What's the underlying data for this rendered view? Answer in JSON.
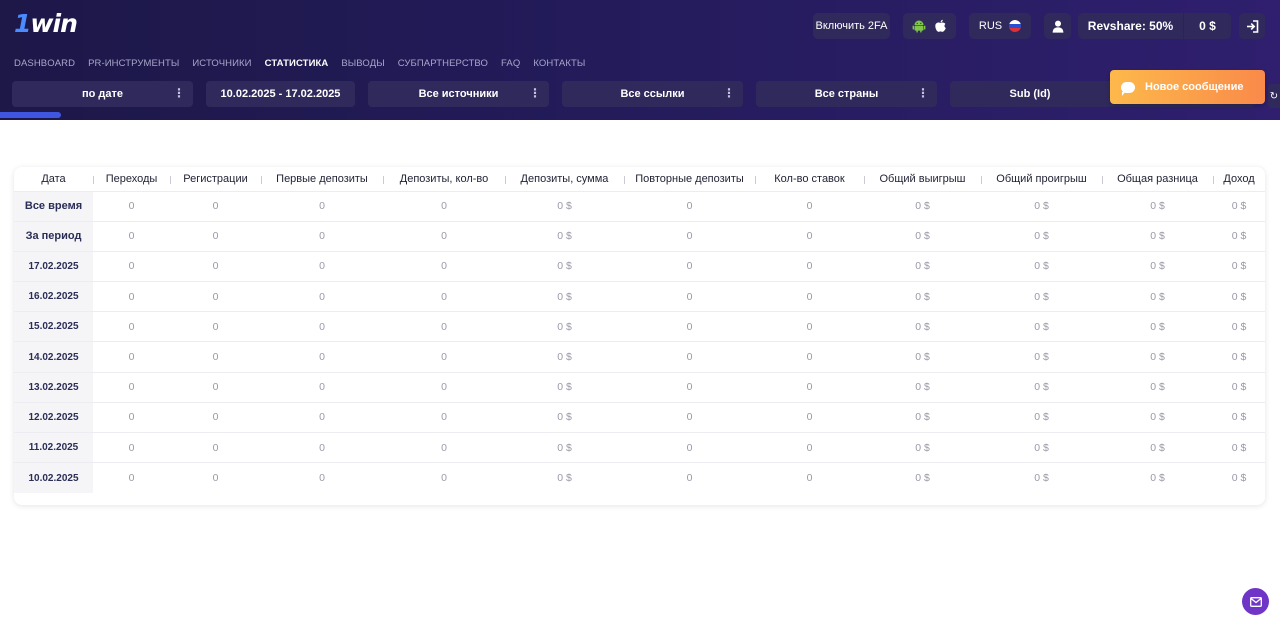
{
  "header": {
    "logo": {
      "one": "1",
      "win": "win"
    },
    "enable_2fa": "Включить 2FA",
    "app_icons": {
      "android": "android-icon",
      "apple": "apple-icon"
    },
    "language": {
      "code": "RUS",
      "flag": "russia-flag-icon"
    },
    "profile_icon": "user-icon",
    "revshare": "Revshare: 50%",
    "balance": "0 $",
    "logout_icon": "logout-icon"
  },
  "nav": {
    "items": [
      {
        "label": "DASHBOARD",
        "active": false
      },
      {
        "label": "PR-ИНСТРУМЕНТЫ",
        "active": false
      },
      {
        "label": "ИСТОЧНИКИ",
        "active": false
      },
      {
        "label": "СТАТИСТИКА",
        "active": true
      },
      {
        "label": "ВЫВОДЫ",
        "active": false
      },
      {
        "label": "СУБПАРТНЕРСТВО",
        "active": false
      },
      {
        "label": "FAQ",
        "active": false
      },
      {
        "label": "КОНТАКТЫ",
        "active": false
      }
    ]
  },
  "filters": {
    "group_by": "по дате",
    "date_range": "10.02.2025 - 17.02.2025",
    "sources": "Все источники",
    "links": "Все ссылки",
    "countries": "Все страны",
    "sub": "Sub (Id)"
  },
  "toast": {
    "text": "Новое сообщение",
    "icon": "chat-bubble-icon"
  },
  "table": {
    "columns": [
      "Дата",
      "Переходы",
      "Регистрации",
      "Первые депозиты",
      "Депозиты, кол-во",
      "Депозиты, сумма",
      "Повторные депозиты",
      "Кол-во ставок",
      "Общий выигрыш",
      "Общий проигрыш",
      "Общая разница",
      "Доход"
    ],
    "rows": [
      [
        "Все время",
        "0",
        "0",
        "0",
        "0",
        "0 $",
        "0",
        "0",
        "0 $",
        "0 $",
        "0 $",
        "0 $"
      ],
      [
        "За период",
        "0",
        "0",
        "0",
        "0",
        "0 $",
        "0",
        "0",
        "0 $",
        "0 $",
        "0 $",
        "0 $"
      ],
      [
        "17.02.2025",
        "0",
        "0",
        "0",
        "0",
        "0 $",
        "0",
        "0",
        "0 $",
        "0 $",
        "0 $",
        "0 $"
      ],
      [
        "16.02.2025",
        "0",
        "0",
        "0",
        "0",
        "0 $",
        "0",
        "0",
        "0 $",
        "0 $",
        "0 $",
        "0 $"
      ],
      [
        "15.02.2025",
        "0",
        "0",
        "0",
        "0",
        "0 $",
        "0",
        "0",
        "0 $",
        "0 $",
        "0 $",
        "0 $"
      ],
      [
        "14.02.2025",
        "0",
        "0",
        "0",
        "0",
        "0 $",
        "0",
        "0",
        "0 $",
        "0 $",
        "0 $",
        "0 $"
      ],
      [
        "13.02.2025",
        "0",
        "0",
        "0",
        "0",
        "0 $",
        "0",
        "0",
        "0 $",
        "0 $",
        "0 $",
        "0 $"
      ],
      [
        "12.02.2025",
        "0",
        "0",
        "0",
        "0",
        "0 $",
        "0",
        "0",
        "0 $",
        "0 $",
        "0 $",
        "0 $"
      ],
      [
        "11.02.2025",
        "0",
        "0",
        "0",
        "0",
        "0 $",
        "0",
        "0",
        "0 $",
        "0 $",
        "0 $",
        "0 $"
      ],
      [
        "10.02.2025",
        "0",
        "0",
        "0",
        "0",
        "0 $",
        "0",
        "0",
        "0 $",
        "0 $",
        "0 $",
        "0 $"
      ]
    ]
  },
  "mail_icon": "mail-icon",
  "colors": {
    "header_bg": "#231b5a",
    "accent": "#3f56e0",
    "toast": "#fdb94b",
    "mail_button": "#6f35c6"
  }
}
